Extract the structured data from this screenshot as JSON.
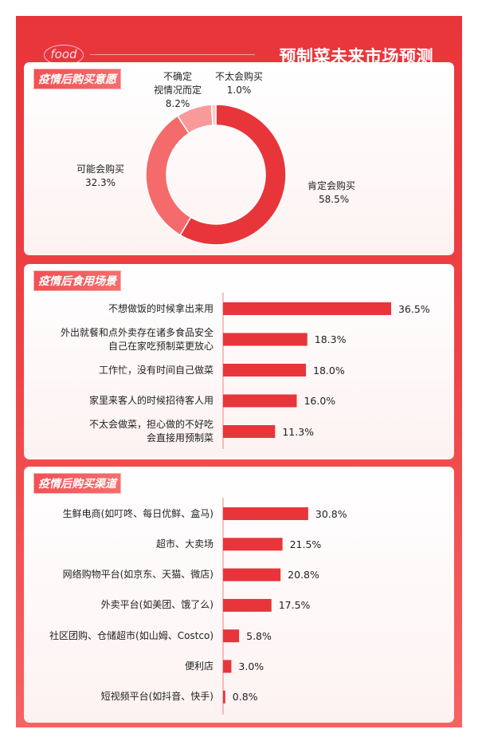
{
  "header": {
    "logo": "food",
    "title": "预制菜未来市场预测"
  },
  "chart_data": [
    {
      "type": "pie",
      "donut": true,
      "title": "疫情后购买意愿",
      "categories": [
        "肯定会购买",
        "可能会购买",
        "不确定\n视情况而定",
        "不太会购买"
      ],
      "values": [
        58.5,
        32.3,
        8.2,
        1.0
      ],
      "labels": [
        "58.5%",
        "32.3%",
        "8.2%",
        "1.0%"
      ],
      "colors": [
        "#e8353a",
        "#f56b6b",
        "#f99a9a",
        "#fcc8c8"
      ]
    },
    {
      "type": "bar",
      "orientation": "horizontal",
      "title": "疫情后食用场景",
      "categories": [
        "不想做饭的时候拿出来用",
        "外出就餐和点外卖存在诸多食品安全\n自己在家吃预制菜更放心",
        "工作忙，没有时间自己做菜",
        "家里来客人的时候招待客人用",
        "不太会做菜，担心做的不好吃\n会直接用预制菜"
      ],
      "values": [
        36.5,
        18.3,
        18.0,
        16.0,
        11.3
      ],
      "labels": [
        "36.5%",
        "18.3%",
        "18.0%",
        "16.0%",
        "11.3%"
      ],
      "color": "#e8353a"
    },
    {
      "type": "bar",
      "orientation": "horizontal",
      "title": "疫情后购买渠道",
      "categories": [
        "生鲜电商(如叮咚、每日优鲜、盒马)",
        "超市、大卖场",
        "网络购物平台(如京东、天猫、微店)",
        "外卖平台(如美团、饿了么)",
        "社区团购、仓储超市(如山姆、Costco)",
        "便利店",
        "短视频平台(如抖音、快手)"
      ],
      "values": [
        30.8,
        21.5,
        20.8,
        17.5,
        5.8,
        3.0,
        0.8
      ],
      "labels": [
        "30.8%",
        "21.5%",
        "20.8%",
        "17.5%",
        "5.8%",
        "3.0%",
        "0.8%"
      ],
      "color": "#e8353a"
    }
  ]
}
